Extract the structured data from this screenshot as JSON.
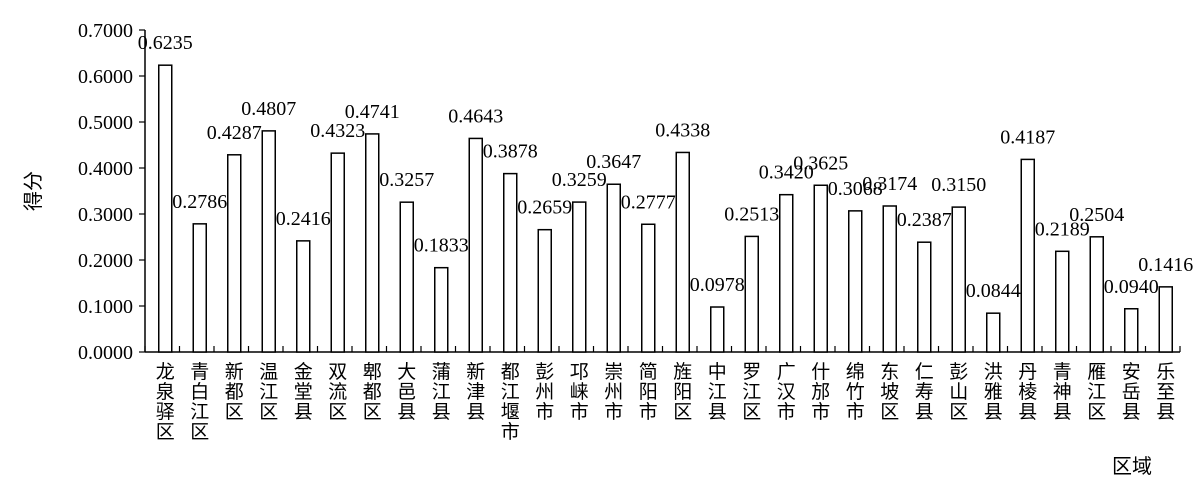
{
  "chart_data": {
    "type": "bar",
    "ylabel": "得分",
    "xlabel": "区域",
    "ylim": [
      0,
      0.7
    ],
    "ytick_labels": [
      "0.0000",
      "0.1000",
      "0.2000",
      "0.3000",
      "0.4000",
      "0.5000",
      "0.6000",
      "0.7000"
    ],
    "categories": [
      "龙泉驿区",
      "青白江区",
      "新都区",
      "温江区",
      "金堂县",
      "双流区",
      "郫都区",
      "大邑县",
      "蒲江县",
      "新津县",
      "都江堰市",
      "彭州市",
      "邛崃市",
      "崇州市",
      "简阳市",
      "旌阳区",
      "中江县",
      "罗江区",
      "广汉市",
      "什邡市",
      "绵竹市",
      "东坡区",
      "仁寿县",
      "彭山区",
      "洪雅县",
      "丹棱县",
      "青神县",
      "雁江区",
      "安岳县",
      "乐至县"
    ],
    "values": [
      0.6235,
      0.2786,
      0.4287,
      0.4807,
      0.2416,
      0.4323,
      0.4741,
      0.3257,
      0.1833,
      0.4643,
      0.3878,
      0.2659,
      0.3259,
      0.3647,
      0.2777,
      0.4338,
      0.0978,
      0.2513,
      0.342,
      0.3625,
      0.3068,
      0.3174,
      0.2387,
      0.315,
      0.0844,
      0.4187,
      0.2189,
      0.2504,
      0.094,
      0.1416
    ],
    "data_labels": [
      "0.6235",
      "0.2786",
      "0.4287",
      "0.4807",
      "0.2416",
      "0.4323",
      "0.4741",
      "0.3257",
      "0.1833",
      "0.4643",
      "0.3878",
      "0.2659",
      "0.3259",
      "0.3647",
      "0.2777",
      "0.4338",
      "0.0978",
      "0.2513",
      "0.3420",
      "0.3625",
      "0.3068",
      "0.3174",
      "0.2387",
      "0.3150",
      "0.0844",
      "0.4187",
      "0.2189",
      "0.2504",
      "0.0940",
      "0.1416"
    ],
    "colors": {
      "bar_fill": "#ffffff",
      "bar_stroke": "#000000",
      "axis": "#000000"
    },
    "grid": false,
    "legend": "none"
  }
}
